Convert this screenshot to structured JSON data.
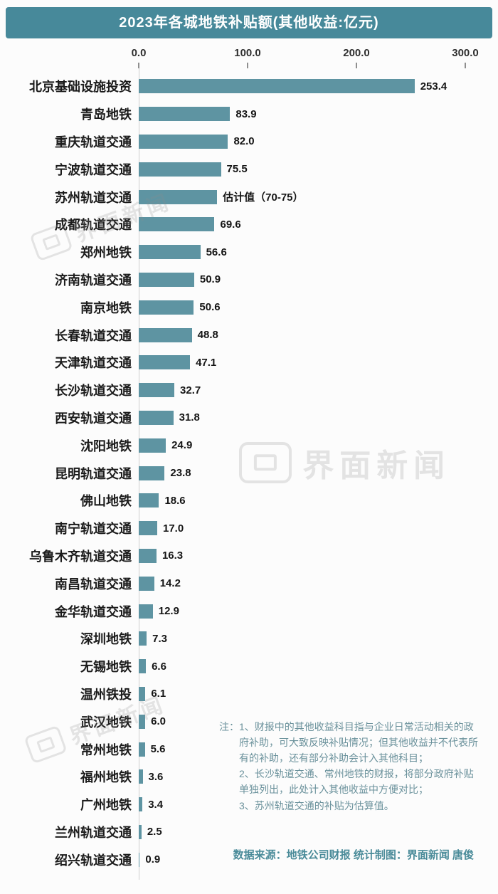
{
  "title": "2023年各城地铁补贴额(其他收益:亿元)",
  "watermark": "界面新闻",
  "notes": {
    "prefix": "注：",
    "items": [
      "1、财报中的其他收益科目指与企业日常活动相关的政府补助，可大致反映补贴情况；但其他收益并不代表所有的补助，还有部分补助会计入其他科目；",
      "2、长沙轨道交通、常州地铁的财报，将部分政府补贴单独列出，此处计入其他收益中方便对比；",
      "3、苏州轨道交通的补贴为估算值。"
    ]
  },
  "source": "数据来源：地铁公司财报    统计制图：界面新闻 唐俊",
  "chart_data": {
    "type": "bar",
    "orientation": "horizontal",
    "title": "2023年各城地铁补贴额(其他收益:亿元)",
    "xlabel": "",
    "ylabel": "",
    "xlim": [
      0,
      300
    ],
    "x_ticks": [
      0,
      100,
      200,
      300
    ],
    "x_tick_labels": [
      "0.0",
      "100.0",
      "200.0",
      "300.0"
    ],
    "grid": false,
    "legend": "none",
    "bar_color": "#5E94A2",
    "categories": [
      "北京基础设施投资",
      "青岛地铁",
      "重庆轨道交通",
      "宁波轨道交通",
      "苏州轨道交通",
      "成都轨道交通",
      "郑州地铁",
      "济南轨道交通",
      "南京地铁",
      "长春轨道交通",
      "天津轨道交通",
      "长沙轨道交通",
      "西安轨道交通",
      "沈阳地铁",
      "昆明轨道交通",
      "佛山地铁",
      "南宁轨道交通",
      "乌鲁木齐轨道交通",
      "南昌轨道交通",
      "金华轨道交通",
      "深圳地铁",
      "无锡地铁",
      "温州铁投",
      "武汉地铁",
      "常州地铁",
      "福州地铁",
      "广州地铁",
      "兰州轨道交通",
      "绍兴轨道交通"
    ],
    "values": [
      253.4,
      83.9,
      82.0,
      75.5,
      72,
      69.6,
      56.6,
      50.9,
      50.6,
      48.8,
      47.1,
      32.7,
      31.8,
      24.9,
      23.8,
      18.6,
      17.0,
      16.3,
      14.2,
      12.9,
      7.3,
      6.6,
      6.1,
      6.0,
      5.6,
      3.6,
      3.4,
      2.5,
      0.9
    ],
    "value_labels": [
      "253.4",
      "83.9",
      "82.0",
      "75.5",
      "估计值（70-75）",
      "69.6",
      "56.6",
      "50.9",
      "50.6",
      "48.8",
      "47.1",
      "32.7",
      "31.8",
      "24.9",
      "23.8",
      "18.6",
      "17.0",
      "16.3",
      "14.2",
      "12.9",
      "7.3",
      "6.6",
      "6.1",
      "6.0",
      "5.6",
      "3.6",
      "3.4",
      "2.5",
      "0.9"
    ]
  }
}
